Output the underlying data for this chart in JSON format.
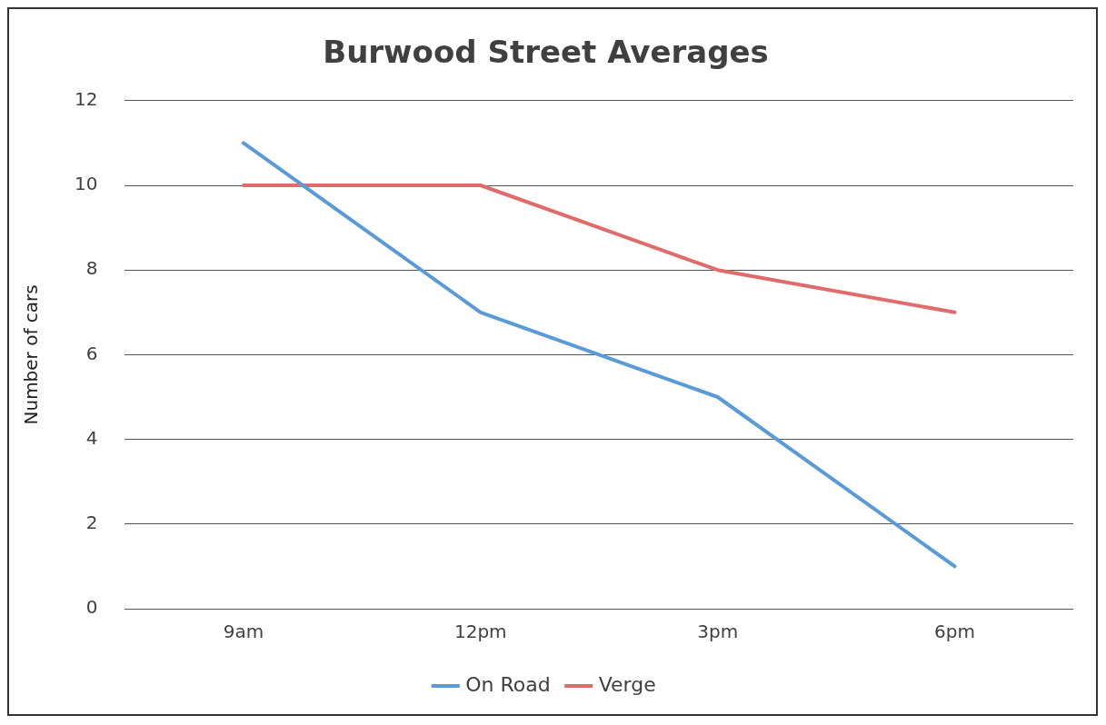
{
  "chart_data": {
    "type": "line",
    "title": "Burwood Street Averages",
    "ylabel": "Number of cars",
    "categories": [
      "9am",
      "12pm",
      "3pm",
      "6pm"
    ],
    "series": [
      {
        "name": "On Road",
        "color": "#5b9bd5",
        "values": [
          11,
          7,
          5,
          1
        ]
      },
      {
        "name": "Verge",
        "color": "#e06b6b",
        "values": [
          10,
          10,
          8,
          7
        ]
      }
    ],
    "ylim": [
      0,
      12
    ],
    "yticks": [
      0,
      2,
      4,
      6,
      8,
      10,
      12
    ],
    "grid": "y",
    "legend": "bottom",
    "marker": "none",
    "line_style": "solid"
  }
}
